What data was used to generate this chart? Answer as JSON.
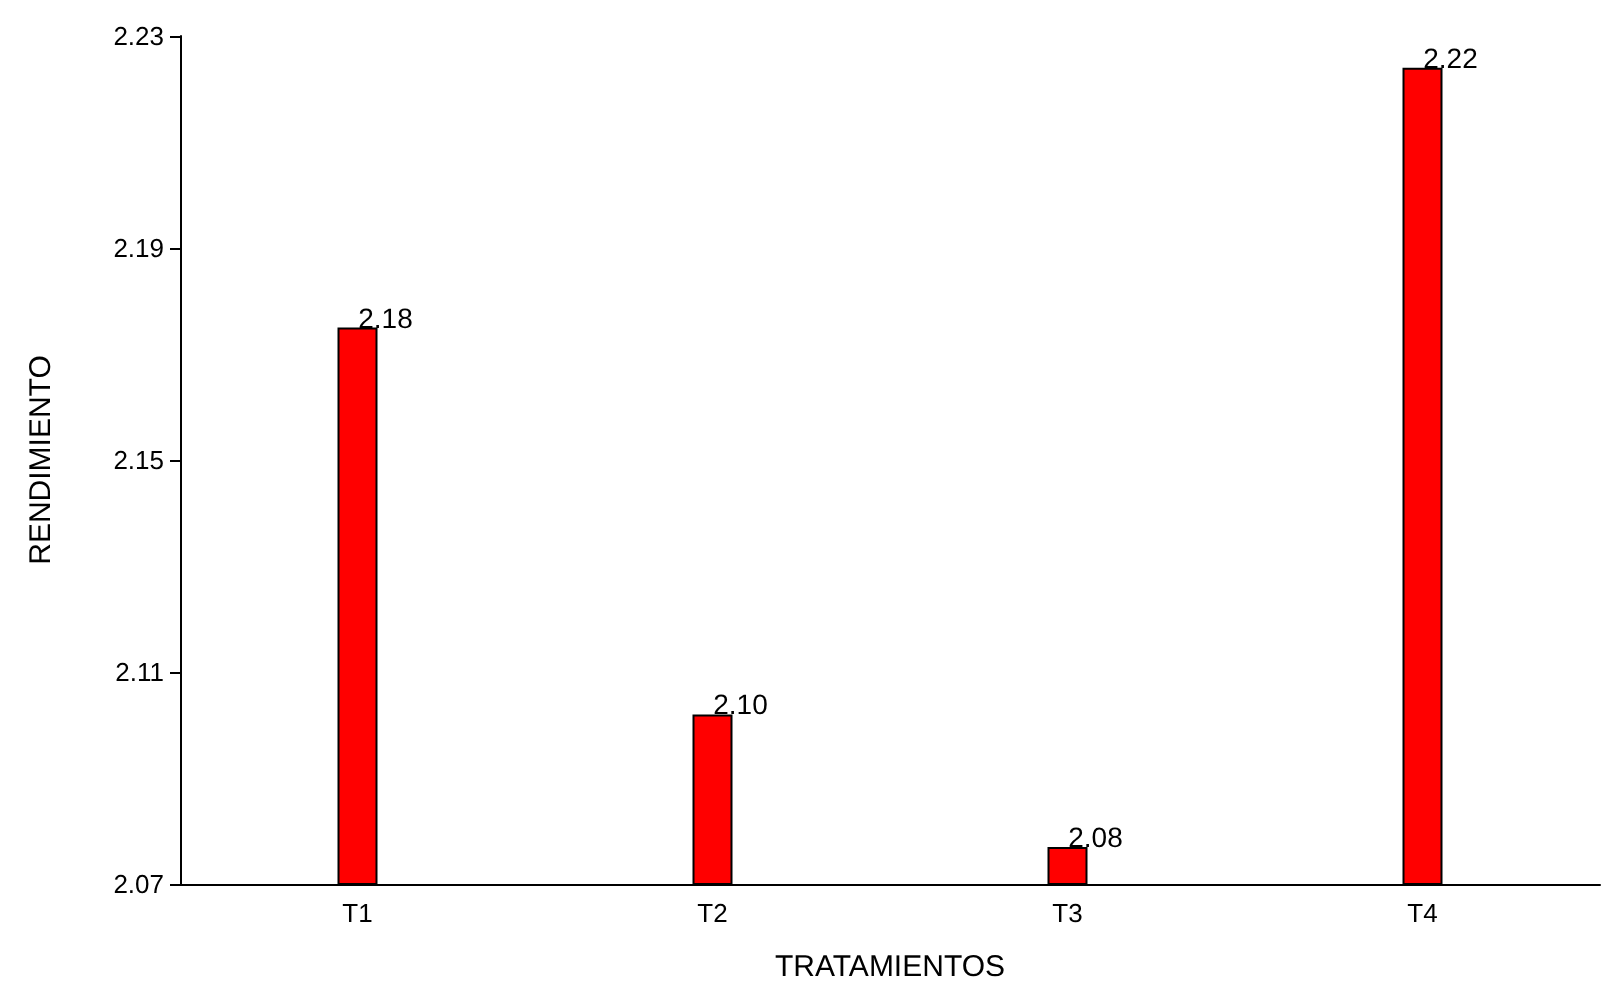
{
  "chart_data": {
    "type": "bar",
    "xlabel": "TRATAMIENTOS",
    "ylabel": "RENDIMIENTO",
    "categories": [
      "T1",
      "T2",
      "T3",
      "T4"
    ],
    "values": [
      2.175,
      2.102,
      2.077,
      2.224
    ],
    "value_labels": [
      "2.18",
      "2.10",
      "2.08",
      "2.22"
    ],
    "color": "#ff0000",
    "ylim": [
      2.07,
      2.23
    ],
    "yticks": [
      2.07,
      2.11,
      2.15,
      2.19,
      2.23
    ],
    "grid": false
  }
}
